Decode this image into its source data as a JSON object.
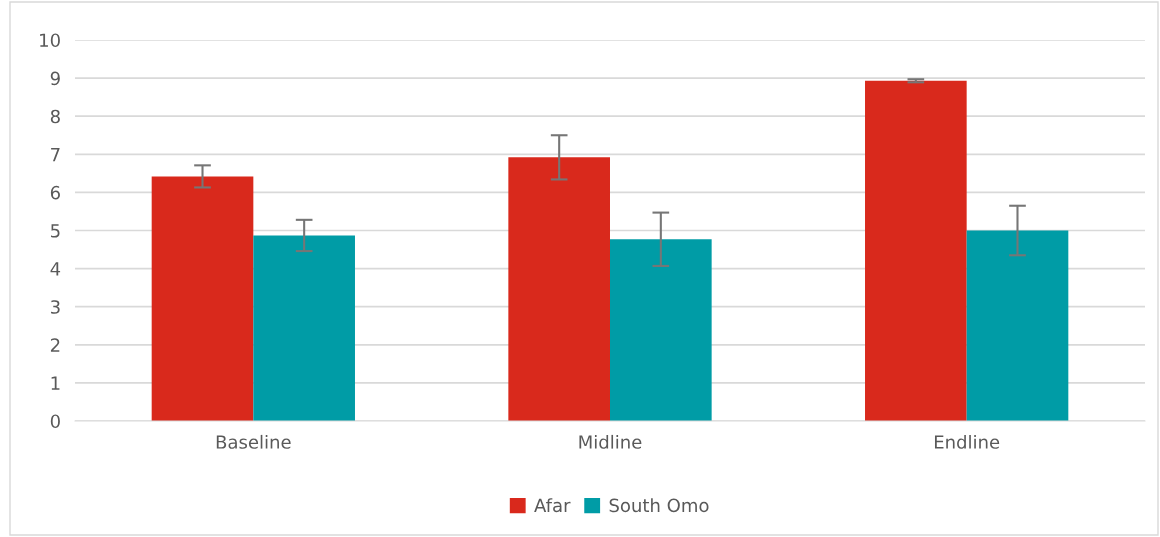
{
  "chart_data": {
    "type": "bar",
    "categories": [
      "Baseline",
      "Midline",
      "Endline"
    ],
    "series": [
      {
        "name": "Afar",
        "color": "#d9291c",
        "values": [
          6.42,
          6.92,
          8.93
        ],
        "errors": [
          0.29,
          0.58,
          0.04
        ]
      },
      {
        "name": "South Omo",
        "color": "#009ca6",
        "values": [
          4.87,
          4.77,
          5.0
        ],
        "errors": [
          0.41,
          0.7,
          0.65
        ]
      }
    ],
    "ylim": [
      0,
      10
    ],
    "yticks": [
      0,
      1,
      2,
      3,
      4,
      5,
      6,
      7,
      8,
      9,
      10
    ],
    "grid": "y",
    "legend": "bottom"
  }
}
